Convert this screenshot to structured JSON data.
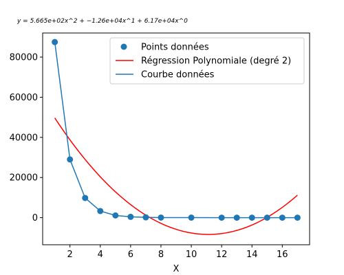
{
  "chart_data": {
    "type": "scatter",
    "title": "y = 5.665e+02x^2 + −1.26e+04x^1 + 6.17e+04x^0",
    "xlabel": "X",
    "ylabel": "",
    "xlim": [
      0.2,
      17.8
    ],
    "ylim": [
      -13500,
      92000
    ],
    "x_ticks": [
      2,
      4,
      6,
      8,
      10,
      12,
      14,
      16
    ],
    "y_ticks": [
      0,
      20000,
      40000,
      60000,
      80000
    ],
    "grid": false,
    "legend_position": "top-right",
    "series": [
      {
        "name": "Points données",
        "kind": "scatter",
        "color": "#1f77b4",
        "points": [
          [
            1,
            87500
          ],
          [
            2,
            29000
          ],
          [
            3,
            9800
          ],
          [
            4,
            3300
          ],
          [
            5,
            1100
          ],
          [
            6,
            400
          ],
          [
            7,
            150
          ],
          [
            8,
            50
          ],
          [
            10,
            10
          ],
          [
            12,
            2
          ],
          [
            13,
            1
          ],
          [
            14,
            0.5
          ],
          [
            15,
            0.2
          ],
          [
            16,
            0.1
          ],
          [
            17,
            0.05
          ]
        ]
      },
      {
        "name": "Régression Polynomiale (degré 2)",
        "kind": "curve",
        "color": "#ff0000",
        "coefficients": [
          566.5,
          -12600,
          61700
        ],
        "x_range": [
          1,
          17
        ]
      },
      {
        "name": "Courbe données",
        "kind": "line",
        "color": "#1f77b4",
        "points": [
          [
            1,
            87500
          ],
          [
            2,
            29000
          ],
          [
            3,
            9800
          ],
          [
            4,
            3300
          ],
          [
            5,
            1100
          ],
          [
            6,
            400
          ],
          [
            7,
            150
          ],
          [
            8,
            50
          ],
          [
            10,
            10
          ],
          [
            12,
            2
          ],
          [
            13,
            1
          ],
          [
            14,
            0.5
          ],
          [
            15,
            0.2
          ],
          [
            16,
            0.1
          ],
          [
            17,
            0.05
          ]
        ]
      }
    ]
  }
}
